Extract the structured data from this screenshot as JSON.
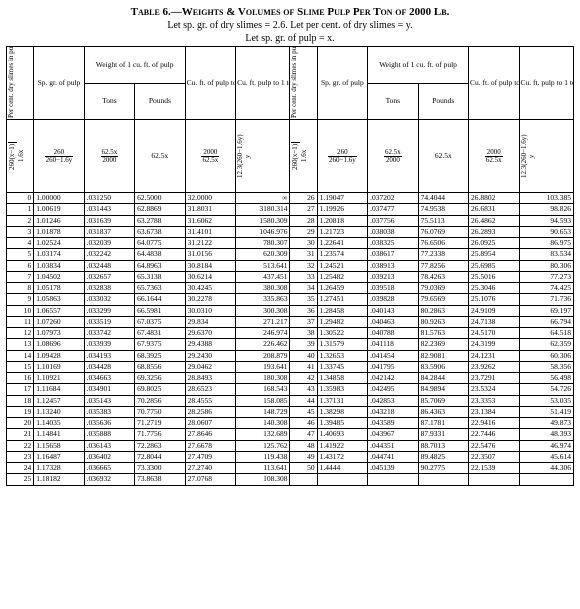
{
  "title": "Table 6.—Weights & Volumes of Slime Pulp Per Ton of 2000 Lb.",
  "subtitle1": "Let sp. gr. of dry slimes = 2.6.   Let per cent. of dry slimes = y.",
  "subtitle2": "Let sp. gr. of pulp = x.",
  "columns": {
    "percent_label": "Per cent. dry slimes in pulp",
    "spgr_label": "Sp. gr. of pulp",
    "weight_label": "Weight of 1 cu. ft. of pulp",
    "weight_tons": "Tons",
    "weight_pounds": "Pounds",
    "cuft_ton_label": "Cu. ft. of pulp to 1 ton",
    "cuft_slimes_label": "Cu. ft. pulp to 1 ton of dry slimes",
    "formulas": {
      "percent": {
        "num": "260(x−1)",
        "den": "1.6x"
      },
      "spgr": {
        "num": "260",
        "den": "260−1.6y"
      },
      "tons": {
        "num": "62.5x",
        "den": "2000"
      },
      "pounds": "62.5x",
      "cuft_ton": {
        "num": "2000",
        "den": "62.5x"
      },
      "cuft_slimes": "12.3(260−1.6y)",
      "y": "y"
    }
  },
  "rows": [
    {
      "p": "0",
      "sp": "1.00000",
      "t": ".031250",
      "lb": "62.5000",
      "cf": "32.0000",
      "cs": "∞",
      "p2": "26",
      "sp2": "1.19047",
      "t2": ".037202",
      "lb2": "74.4044",
      "cf2": "26.8802",
      "cs2": "103.385"
    },
    {
      "p": "1",
      "sp": "1.00619",
      "t": ".031443",
      "lb": "62.8869",
      "cf": "31.8031",
      "cs": "3180.314",
      "p2": "27",
      "sp2": "1.19926",
      "t2": ".037477",
      "lb2": "74.9538",
      "cf2": "26.6831",
      "cs2": "98.826"
    },
    {
      "p": "2",
      "sp": "1.01246",
      "t": ".031639",
      "lb": "63.2788",
      "cf": "31.6062",
      "cs": "1580.309",
      "p2": "28",
      "sp2": "1.20818",
      "t2": ".037756",
      "lb2": "75.5113",
      "cf2": "26.4862",
      "cs2": "94.593"
    },
    {
      "p": "3",
      "sp": "1.01878",
      "t": ".031837",
      "lb": "63.6738",
      "cf": "31.4101",
      "cs": "1046.976",
      "p2": "29",
      "sp2": "1.21723",
      "t2": ".038038",
      "lb2": "76.0769",
      "cf2": "26.2893",
      "cs2": "90.653"
    },
    {
      "p": "4",
      "sp": "1.02524",
      "t": ".032039",
      "lb": "64.0775",
      "cf": "31.2122",
      "cs": "780.307",
      "p2": "30",
      "sp2": "1.22641",
      "t2": ".038325",
      "lb2": "76.6506",
      "cf2": "26.0925",
      "cs2": "86.975"
    },
    {
      "p": "5",
      "sp": "1.03174",
      "t": ".032242",
      "lb": "64.4838",
      "cf": "31.0156",
      "cs": "620.309",
      "p2": "31",
      "sp2": "1.23574",
      "t2": ".038617",
      "lb2": "77.2338",
      "cf2": "25.8954",
      "cs2": "83.534"
    },
    {
      "p": "6",
      "sp": "1.03834",
      "t": ".032448",
      "lb": "64.8963",
      "cf": "30.8184",
      "cs": "513.641",
      "p2": "32",
      "sp2": "1.24521",
      "t2": ".038913",
      "lb2": "77.8256",
      "cf2": "25.6985",
      "cs2": "80.306"
    },
    {
      "p": "7",
      "sp": "1.04502",
      "t": ".032657",
      "lb": "65.3138",
      "cf": "30.6214",
      "cs": "437.451",
      "p2": "33",
      "sp2": "1.25482",
      "t2": ".039213",
      "lb2": "78.4263",
      "cf2": "25.5016",
      "cs2": "77.273"
    },
    {
      "p": "8",
      "sp": "1.05178",
      "t": ".032838",
      "lb": "65.7363",
      "cf": "30.4245",
      "cs": "380.308",
      "p2": "34",
      "sp2": "1.26459",
      "t2": ".039518",
      "lb2": "79.0369",
      "cf2": "25.3046",
      "cs2": "74.425"
    },
    {
      "p": "9",
      "sp": "1.05863",
      "t": ".033032",
      "lb": "66.1644",
      "cf": "30.2278",
      "cs": "335.863",
      "p2": "35",
      "sp2": "1.27451",
      "t2": ".039828",
      "lb2": "79.6569",
      "cf2": "25.1076",
      "cs2": "71.736"
    },
    {
      "p": "10",
      "sp": "1.06557",
      "t": ".033299",
      "lb": "66.5981",
      "cf": "30.0310",
      "cs": "300.308",
      "p2": "36",
      "sp2": "1.28458",
      "t2": ".040143",
      "lb2": "80.2863",
      "cf2": "24.9109",
      "cs2": "69.197"
    },
    {
      "p": "11",
      "sp": "1.07260",
      "t": ".033519",
      "lb": "67.0375",
      "cf": "29.834",
      "cs": "271.217",
      "p2": "37",
      "sp2": "1.29482",
      "t2": ".040463",
      "lb2": "80.9263",
      "cf2": "24.7138",
      "cs2": "66.794"
    },
    {
      "p": "12",
      "sp": "1.07973",
      "t": ".033742",
      "lb": "67.4831",
      "cf": "29.6370",
      "cs": "246.974",
      "p2": "38",
      "sp2": "1.30522",
      "t2": ".040788",
      "lb2": "81.5763",
      "cf2": "24.5170",
      "cs2": "64.518"
    },
    {
      "p": "13",
      "sp": "1.08696",
      "t": ".033939",
      "lb": "67.9375",
      "cf": "29.4388",
      "cs": "226.462",
      "p2": "39",
      "sp2": "1.31579",
      "t2": ".041118",
      "lb2": "82.2369",
      "cf2": "24.3199",
      "cs2": "62.359"
    },
    {
      "p": "14",
      "sp": "1.09428",
      "t": ".034193",
      "lb": "68.3925",
      "cf": "29.2430",
      "cs": "208.879",
      "p2": "40",
      "sp2": "1.32653",
      "t2": ".041454",
      "lb2": "82.9081",
      "cf2": "24.1231",
      "cs2": "60.306"
    },
    {
      "p": "15",
      "sp": "1.10169",
      "t": ".034428",
      "lb": "68.8556",
      "cf": "29.0462",
      "cs": "193.641",
      "p2": "41",
      "sp2": "1.33745",
      "t2": ".041795",
      "lb2": "83.5906",
      "cf2": "23.9262",
      "cs2": "58.356"
    },
    {
      "p": "16",
      "sp": "1.10921",
      "t": ".034663",
      "lb": "69.3256",
      "cf": "28.8493",
      "cs": "180.308",
      "p2": "42",
      "sp2": "1.34858",
      "t2": ".042142",
      "lb2": "84.2844",
      "cf2": "23.7291",
      "cs2": "56.498"
    },
    {
      "p": "17",
      "sp": "1.11684",
      "t": ".034901",
      "lb": "69.8025",
      "cf": "28.6523",
      "cs": "168.543",
      "p2": "43",
      "sp2": "1.35983",
      "t2": ".042495",
      "lb2": "84.9894",
      "cf2": "23.5324",
      "cs2": "54.726"
    },
    {
      "p": "18",
      "sp": "1.12457",
      "t": ".035143",
      "lb": "70.2856",
      "cf": "28.4555",
      "cs": "158.085",
      "p2": "44",
      "sp2": "1.37131",
      "t2": ".042853",
      "lb2": "85.7069",
      "cf2": "23.3353",
      "cs2": "53.035"
    },
    {
      "p": "19",
      "sp": "1.13240",
      "t": ".035383",
      "lb": "70.7750",
      "cf": "28.2586",
      "cs": "148.729",
      "p2": "45",
      "sp2": "1.38298",
      "t2": ".043218",
      "lb2": "86.4363",
      "cf2": "23.1384",
      "cs2": "51.419"
    },
    {
      "p": "20",
      "sp": "1.14035",
      "t": ".035636",
      "lb": "71.2719",
      "cf": "28.0607",
      "cs": "140.308",
      "p2": "46",
      "sp2": "1.39485",
      "t2": ".043589",
      "lb2": "87.1781",
      "cf2": "22.9416",
      "cs2": "49.873"
    },
    {
      "p": "21",
      "sp": "1.14841",
      "t": ".035888",
      "lb": "71.7756",
      "cf": "27.8646",
      "cs": "132.689",
      "p2": "47",
      "sp2": "1.40693",
      "t2": ".043967",
      "lb2": "87.9331",
      "cf2": "22.7446",
      "cs2": "48.393"
    },
    {
      "p": "22",
      "sp": "1.15658",
      "t": ".036143",
      "lb": "72.2863",
      "cf": "27.6678",
      "cs": "125.762",
      "p2": "48",
      "sp2": "1.41922",
      "t2": ".044351",
      "lb2": "88.7013",
      "cf2": "22.5476",
      "cs2": "46.974"
    },
    {
      "p": "23",
      "sp": "1.16487",
      "t": ".036402",
      "lb": "72.8044",
      "cf": "27.4709",
      "cs": "119.438",
      "p2": "49",
      "sp2": "1.43172",
      "t2": ".044741",
      "lb2": "89.4825",
      "cf2": "22.3507",
      "cs2": "45.614"
    },
    {
      "p": "24",
      "sp": "1.17328",
      "t": ".036665",
      "lb": "73.3300",
      "cf": "27.2740",
      "cs": "113.641",
      "p2": "50",
      "sp2": "1.4444",
      "t2": ".045139",
      "lb2": "90.2775",
      "cf2": "22.1539",
      "cs2": "44.306"
    },
    {
      "p": "25",
      "sp": "1.18182",
      "t": ".036932",
      "lb": "73.8638",
      "cf": "27.0768",
      "cs": "108.308",
      "p2": "",
      "sp2": "",
      "t2": "",
      "lb2": "",
      "cf2": "",
      "cs2": ""
    }
  ],
  "style": {
    "font_family": "Times New Roman, serif",
    "title_fontsize": 11,
    "body_fontsize": 8,
    "cell_fontsize": 7.5,
    "border_color": "#000000",
    "background": "#ffffff"
  }
}
